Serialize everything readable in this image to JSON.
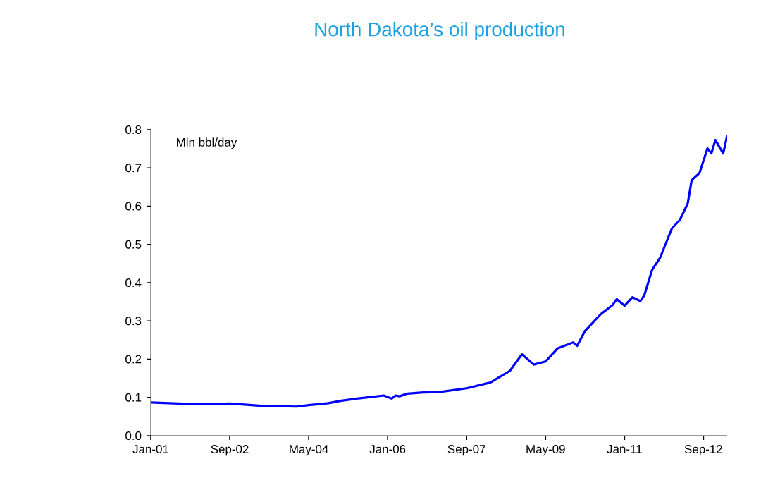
{
  "chart_data": {
    "type": "line",
    "title": "North Dakota’s oil production",
    "ylabel": "Mln bbl/day",
    "x": [
      "2001-01",
      "2001-08",
      "2002-03",
      "2002-09",
      "2003-05",
      "2004-02",
      "2004-05",
      "2004-10",
      "2005-01",
      "2005-06",
      "2005-12",
      "2006-02",
      "2006-03",
      "2006-04",
      "2006-06",
      "2006-10",
      "2007-02",
      "2007-09",
      "2008-03",
      "2008-08",
      "2008-11",
      "2009-02",
      "2009-05",
      "2009-08",
      "2009-12",
      "2010-01",
      "2010-03",
      "2010-07",
      "2010-10",
      "2010-11",
      "2011-01",
      "2011-03",
      "2011-05",
      "2011-06",
      "2011-08",
      "2011-10",
      "2012-01",
      "2012-03",
      "2012-05",
      "2012-06",
      "2012-08",
      "2012-10",
      "2012-11",
      "2012-12",
      "2013-02",
      "2013-03"
    ],
    "series": [
      {
        "color": "#0000ff",
        "values": [
          0.087,
          0.084,
          0.082,
          0.084,
          0.078,
          0.076,
          0.08,
          0.085,
          0.091,
          0.098,
          0.105,
          0.097,
          0.105,
          0.103,
          0.11,
          0.113,
          0.114,
          0.124,
          0.139,
          0.17,
          0.213,
          0.186,
          0.194,
          0.228,
          0.244,
          0.235,
          0.274,
          0.318,
          0.342,
          0.357,
          0.34,
          0.362,
          0.352,
          0.367,
          0.434,
          0.465,
          0.542,
          0.564,
          0.607,
          0.668,
          0.687,
          0.751,
          0.738,
          0.773,
          0.738,
          0.785
        ]
      }
    ],
    "xlim": [
      "2001-01",
      "2013-03"
    ],
    "xticks": [
      {
        "value": "2001-01",
        "label": "Jan-01"
      },
      {
        "value": "2002-09",
        "label": "Sep-02"
      },
      {
        "value": "2004-05",
        "label": "May-04"
      },
      {
        "value": "2006-01",
        "label": "Jan-06"
      },
      {
        "value": "2007-09",
        "label": "Sep-07"
      },
      {
        "value": "2009-05",
        "label": "May-09"
      },
      {
        "value": "2011-01",
        "label": "Jan-11"
      },
      {
        "value": "2012-09",
        "label": "Sep-12"
      }
    ],
    "ylim": [
      0,
      0.8
    ],
    "yticks": [
      {
        "value": 0,
        "label": "0.0"
      },
      {
        "value": 0.1,
        "label": "0.1"
      },
      {
        "value": 0.2,
        "label": "0.2"
      },
      {
        "value": 0.3,
        "label": "0.3"
      },
      {
        "value": 0.4,
        "label": "0.4"
      },
      {
        "value": 0.5,
        "label": "0.5"
      },
      {
        "value": 0.6,
        "label": "0.6"
      },
      {
        "value": 0.7,
        "label": "0.7"
      },
      {
        "value": 0.8,
        "label": "0.8"
      }
    ],
    "grid": false
  }
}
